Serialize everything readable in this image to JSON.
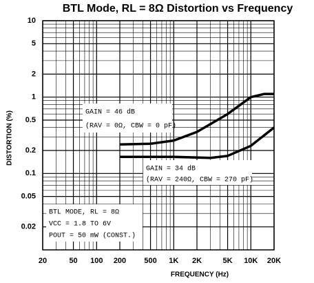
{
  "chart_data": {
    "type": "line",
    "title": "BTL Mode, RL = 8Ω Distortion vs Frequency",
    "x_label": "FREQUENCY (Hz)",
    "y_label": "DISTORTION (%)",
    "xlog": true,
    "ylog": true,
    "grid": true,
    "xlim": [
      20,
      20000
    ],
    "ylim": [
      0.01,
      10
    ],
    "xticks": [
      20,
      50,
      100,
      200,
      500,
      {
        "value": 1000,
        "label": "1K"
      },
      {
        "value": 2000,
        "label": "2K"
      },
      {
        "value": 5000,
        "label": "5K"
      },
      {
        "value": 10000,
        "label": "10K"
      },
      {
        "value": 20000,
        "label": "20K"
      }
    ],
    "yticks": [
      0.02,
      0.05,
      0.1,
      0.2,
      0.5,
      1,
      2,
      5,
      10
    ],
    "series": [
      {
        "name": "GAIN = 46 dB",
        "color": "#000000",
        "x": [
          200,
          500,
          1000,
          2000,
          5000,
          10000,
          15000,
          20000
        ],
        "values": [
          0.24,
          0.245,
          0.27,
          0.35,
          0.6,
          1.0,
          1.1,
          1.1
        ]
      },
      {
        "name": "GAIN = 34 dB",
        "color": "#000000",
        "x": [
          200,
          1000,
          3000,
          5000,
          10000,
          20000
        ],
        "values": [
          0.165,
          0.165,
          0.16,
          0.17,
          0.23,
          0.4
        ]
      }
    ],
    "annotations": [
      "(RAV = 0Ω, CBW = 0 pF)",
      "(RAV = 240Ω, CBW = 270 pF)",
      "BTL MODE, RL = 8Ω",
      "VCC = 1.8 TO 6V",
      "POUT = 50 mW (CONST.)"
    ]
  }
}
